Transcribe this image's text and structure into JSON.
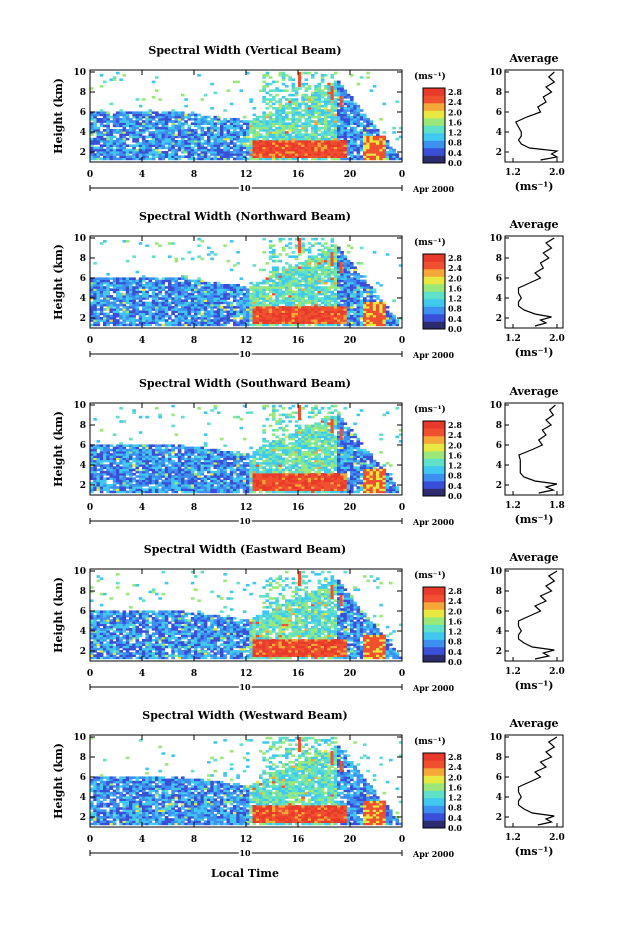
{
  "chart_data": [
    {
      "type": "heatmap",
      "title": "Spectral Width (Vertical Beam)",
      "ylabel": "Height (km)",
      "xticks": [
        "0",
        "4",
        "8",
        "12",
        "16",
        "20",
        "0"
      ],
      "yticks": [
        "2",
        "4",
        "6",
        "8",
        "10"
      ],
      "date_day": "10",
      "date_month": "Apr 2000",
      "colorbar": {
        "unit": "(ms⁻¹)",
        "ticks": [
          "2.8",
          "2.4",
          "2.0",
          "1.6",
          "1.2",
          "0.8",
          "0.4",
          "0.0"
        ]
      },
      "profile": {
        "title": "Average",
        "xticks": [
          "1.2",
          "2.0"
        ],
        "xlabel": "(ms⁻¹)",
        "yticks": [
          "2",
          "4",
          "6",
          "8",
          "10"
        ],
        "heights": [
          1.2,
          1.5,
          1.8,
          2.1,
          2.4,
          2.8,
          3.2,
          3.6,
          4.0,
          4.5,
          5.0,
          5.5,
          6.0,
          6.5,
          7.0,
          7.5,
          8.0,
          8.5,
          9.0,
          9.5,
          10.0
        ],
        "values": [
          1.7,
          2.0,
          1.9,
          2.0,
          1.5,
          1.35,
          1.3,
          1.35,
          1.35,
          1.3,
          1.25,
          1.45,
          1.7,
          1.65,
          1.8,
          1.75,
          1.9,
          1.8,
          1.95,
          1.85,
          1.95
        ]
      }
    },
    {
      "type": "heatmap",
      "title": "Spectral Width (Northward Beam)",
      "ylabel": "Height (km)",
      "xticks": [
        "0",
        "4",
        "8",
        "12",
        "16",
        "20",
        "0"
      ],
      "yticks": [
        "2",
        "4",
        "6",
        "8",
        "10"
      ],
      "date_day": "10",
      "date_month": "Apr 2000",
      "colorbar": {
        "unit": "(ms⁻¹)",
        "ticks": [
          "2.8",
          "2.4",
          "2.0",
          "1.6",
          "1.2",
          "0.8",
          "0.4",
          "0.0"
        ]
      },
      "profile": {
        "title": "Average",
        "xticks": [
          "1.2",
          "2.0"
        ],
        "xlabel": "(ms⁻¹)",
        "yticks": [
          "2",
          "4",
          "6",
          "8",
          "10"
        ],
        "heights": [
          1.2,
          1.5,
          1.8,
          2.1,
          2.4,
          2.8,
          3.2,
          3.6,
          4.0,
          4.5,
          5.0,
          5.5,
          6.0,
          6.5,
          7.0,
          7.5,
          8.0,
          8.5,
          9.0,
          9.5,
          10.0
        ],
        "values": [
          1.6,
          1.8,
          1.7,
          1.9,
          1.6,
          1.4,
          1.3,
          1.3,
          1.35,
          1.3,
          1.3,
          1.5,
          1.7,
          1.6,
          1.75,
          1.7,
          1.85,
          1.75,
          1.9,
          1.8,
          1.95
        ]
      }
    },
    {
      "type": "heatmap",
      "title": "Spectral Width (Southward Beam)",
      "ylabel": "Height (km)",
      "xticks": [
        "0",
        "4",
        "8",
        "12",
        "16",
        "20",
        "0"
      ],
      "yticks": [
        "2",
        "4",
        "6",
        "8",
        "10"
      ],
      "date_day": "10",
      "date_month": "Apr 2000",
      "colorbar": {
        "unit": "(ms⁻¹)",
        "ticks": [
          "2.8",
          "2.4",
          "2.0",
          "1.6",
          "1.2",
          "0.8",
          "0.4",
          "0.0"
        ]
      },
      "profile": {
        "title": "Average",
        "xticks": [
          "1.2",
          "1.8"
        ],
        "xlabel": "(ms⁻¹)",
        "yticks": [
          "2",
          "4",
          "6",
          "8",
          "10"
        ],
        "heights": [
          1.2,
          1.5,
          1.8,
          2.1,
          2.4,
          2.8,
          3.2,
          3.6,
          4.0,
          4.5,
          5.0,
          5.5,
          6.0,
          6.5,
          7.0,
          7.5,
          8.0,
          8.5,
          9.0,
          9.5,
          10.0
        ],
        "values": [
          1.55,
          1.75,
          1.65,
          1.8,
          1.5,
          1.35,
          1.3,
          1.3,
          1.3,
          1.3,
          1.28,
          1.45,
          1.6,
          1.55,
          1.65,
          1.6,
          1.72,
          1.65,
          1.75,
          1.7,
          1.78
        ]
      }
    },
    {
      "type": "heatmap",
      "title": "Spectral Width (Eastward Beam)",
      "ylabel": "Height (km)",
      "xticks": [
        "0",
        "4",
        "8",
        "12",
        "16",
        "20",
        "0"
      ],
      "yticks": [
        "2",
        "4",
        "6",
        "8",
        "10"
      ],
      "date_day": "10",
      "date_month": "Apr 2000",
      "colorbar": {
        "unit": "(ms⁻¹)",
        "ticks": [
          "2.8",
          "2.4",
          "2.0",
          "1.6",
          "1.2",
          "0.8",
          "0.4",
          "0.0"
        ]
      },
      "profile": {
        "title": "Average",
        "xticks": [
          "1.2",
          "2.0"
        ],
        "xlabel": "(ms⁻¹)",
        "yticks": [
          "2",
          "4",
          "6",
          "8",
          "10"
        ],
        "heights": [
          1.2,
          1.5,
          1.8,
          2.1,
          2.4,
          2.8,
          3.2,
          3.6,
          4.0,
          4.5,
          5.0,
          5.5,
          6.0,
          6.5,
          7.0,
          7.5,
          8.0,
          8.5,
          9.0,
          9.5,
          10.0
        ],
        "values": [
          1.6,
          1.85,
          1.75,
          1.95,
          1.55,
          1.4,
          1.3,
          1.3,
          1.35,
          1.3,
          1.3,
          1.5,
          1.7,
          1.6,
          1.8,
          1.7,
          1.9,
          1.8,
          1.95,
          1.85,
          2.0
        ]
      }
    },
    {
      "type": "heatmap",
      "title": "Spectral Width (Westward Beam)",
      "ylabel": "Height (km)",
      "xticks": [
        "0",
        "4",
        "8",
        "12",
        "16",
        "20",
        "0"
      ],
      "yticks": [
        "2",
        "4",
        "6",
        "8",
        "10"
      ],
      "date_day": "10",
      "date_month": "Apr 2000",
      "colorbar": {
        "unit": "(ms⁻¹)",
        "ticks": [
          "2.8",
          "2.4",
          "2.0",
          "1.6",
          "1.2",
          "0.8",
          "0.4",
          "0.0"
        ]
      },
      "profile": {
        "title": "Average",
        "xticks": [
          "1.2",
          "2.0"
        ],
        "xlabel": "(ms⁻¹)",
        "yticks": [
          "2",
          "4",
          "6",
          "8",
          "10"
        ],
        "heights": [
          1.2,
          1.5,
          1.8,
          2.1,
          2.4,
          2.8,
          3.2,
          3.6,
          4.0,
          4.5,
          5.0,
          5.5,
          6.0,
          6.5,
          7.0,
          7.5,
          8.0,
          8.5,
          9.0,
          9.5,
          10.0
        ],
        "values": [
          1.65,
          1.9,
          1.8,
          1.95,
          1.55,
          1.4,
          1.3,
          1.3,
          1.35,
          1.3,
          1.3,
          1.5,
          1.7,
          1.6,
          1.8,
          1.7,
          1.9,
          1.8,
          1.95,
          1.85,
          2.0
        ]
      }
    }
  ],
  "xlabel": "Local Time",
  "colors": {
    "scale": [
      "#2b2b6e",
      "#3a4fd8",
      "#3d8ff2",
      "#40c8f0",
      "#5fe0c8",
      "#9ae878",
      "#e8e840",
      "#f5a838",
      "#f05030",
      "#e83a2a"
    ]
  }
}
